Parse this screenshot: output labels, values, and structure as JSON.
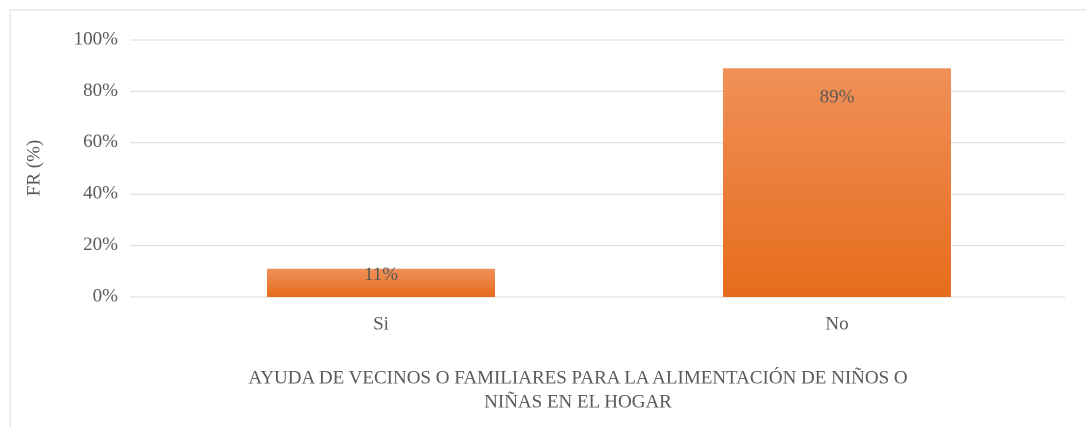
{
  "chart_data": {
    "type": "bar",
    "categories": [
      "Si",
      "No"
    ],
    "values": [
      11,
      89
    ],
    "value_labels": [
      "11%",
      "89%"
    ],
    "color": "#ed7d31",
    "ylabel": "FR (%)",
    "xlabel": [
      "AYUDA DE VECINOS O FAMILIARES PARA LA ALIMENTACIÓN DE NIÑOS O",
      "NIÑAS EN EL HOGAR"
    ],
    "ylim": [
      0,
      100
    ],
    "yticks": [
      {
        "value": 0,
        "label": "0%"
      },
      {
        "value": 20,
        "label": "20%"
      },
      {
        "value": 40,
        "label": "40%"
      },
      {
        "value": 60,
        "label": "60%"
      },
      {
        "value": 80,
        "label": "80%"
      },
      {
        "value": 100,
        "label": "100%"
      }
    ],
    "grid": true
  }
}
